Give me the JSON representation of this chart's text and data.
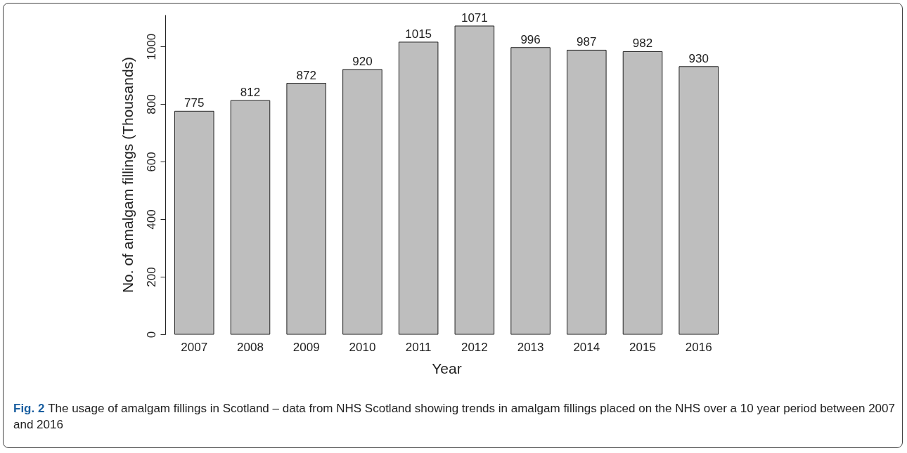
{
  "chart_data": {
    "type": "bar",
    "xlabel": "Year",
    "ylabel": "No. of amalgam fillings (Thousands)",
    "categories": [
      "2007",
      "2008",
      "2009",
      "2010",
      "2011",
      "2012",
      "2013",
      "2014",
      "2015",
      "2016"
    ],
    "values": [
      775,
      812,
      872,
      920,
      1015,
      1071,
      996,
      987,
      982,
      930
    ],
    "color": "#bebebe",
    "ylim": [
      0,
      1110
    ],
    "yticks": [
      0,
      200,
      400,
      600,
      800,
      1000
    ],
    "grid": false,
    "data_labels": true,
    "annotations": [
      "Fig. 2",
      "The usage of amalgam fillings in Scotland – data from NHS Scotland showing trends in amalgam fillings placed on the NHS over a 10 year period between 2007 and 2016"
    ]
  }
}
